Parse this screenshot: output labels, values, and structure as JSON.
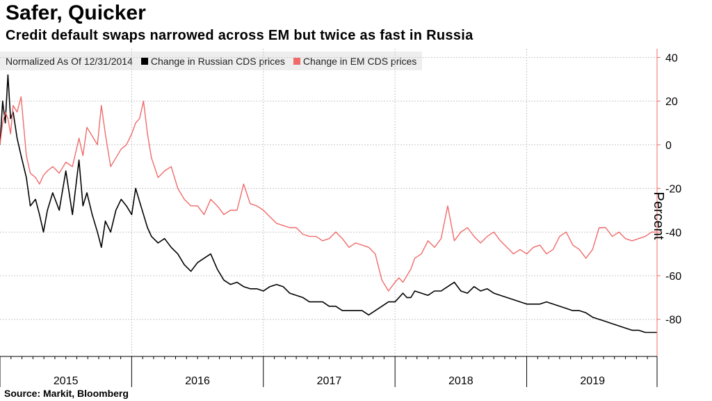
{
  "title": "Safer, Quicker",
  "subtitle": "Credit default swaps narrowed across EM but twice as fast in Russia",
  "source": "Source: Markit, Bloomberg",
  "legend": {
    "note": "Normalized As Of 12/31/2014"
  },
  "chart_data": {
    "type": "line",
    "ylabel": "Percent",
    "xlabel": "",
    "ylim": [
      -97,
      44
    ],
    "y_ticks": [
      40,
      20,
      0,
      -20,
      -40,
      -60,
      -80
    ],
    "x_range": [
      2015.0,
      2019.99
    ],
    "year_labels": [
      "2015",
      "2016",
      "2017",
      "2018",
      "2019"
    ],
    "grid": true,
    "legend_position": "top-left",
    "series": [
      {
        "name": "Change in Russian CDS prices",
        "color": "#000000",
        "x": [
          2015.0,
          2015.02,
          2015.04,
          2015.06,
          2015.08,
          2015.1,
          2015.13,
          2015.16,
          2015.2,
          2015.23,
          2015.27,
          2015.3,
          2015.33,
          2015.36,
          2015.4,
          2015.45,
          2015.5,
          2015.55,
          2015.6,
          2015.63,
          2015.66,
          2015.7,
          2015.74,
          2015.77,
          2015.8,
          2015.84,
          2015.88,
          2015.92,
          2015.96,
          2016.0,
          2016.03,
          2016.06,
          2016.09,
          2016.12,
          2016.15,
          2016.2,
          2016.25,
          2016.3,
          2016.35,
          2016.4,
          2016.45,
          2016.5,
          2016.55,
          2016.6,
          2016.65,
          2016.7,
          2016.75,
          2016.8,
          2016.85,
          2016.9,
          2016.95,
          2017.0,
          2017.05,
          2017.1,
          2017.15,
          2017.2,
          2017.25,
          2017.3,
          2017.35,
          2017.4,
          2017.45,
          2017.5,
          2017.55,
          2017.6,
          2017.65,
          2017.7,
          2017.75,
          2017.8,
          2017.85,
          2017.9,
          2017.95,
          2018.0,
          2018.03,
          2018.06,
          2018.09,
          2018.12,
          2018.15,
          2018.2,
          2018.25,
          2018.3,
          2018.35,
          2018.4,
          2018.45,
          2018.5,
          2018.55,
          2018.6,
          2018.65,
          2018.7,
          2018.75,
          2018.8,
          2018.85,
          2018.9,
          2018.95,
          2019.0,
          2019.05,
          2019.1,
          2019.15,
          2019.2,
          2019.25,
          2019.3,
          2019.35,
          2019.4,
          2019.45,
          2019.5,
          2019.55,
          2019.6,
          2019.65,
          2019.7,
          2019.75,
          2019.8,
          2019.85,
          2019.9,
          2019.95,
          2019.99
        ],
        "y": [
          0,
          20,
          10,
          32,
          12,
          15,
          3,
          -5,
          -15,
          -28,
          -25,
          -32,
          -40,
          -30,
          -22,
          -30,
          -12,
          -32,
          -7,
          -28,
          -22,
          -32,
          -40,
          -47,
          -35,
          -40,
          -30,
          -25,
          -28,
          -32,
          -20,
          -26,
          -32,
          -38,
          -42,
          -45,
          -43,
          -47,
          -50,
          -55,
          -58,
          -54,
          -52,
          -50,
          -57,
          -62,
          -64,
          -63,
          -65,
          -66,
          -66,
          -67,
          -65,
          -64,
          -65,
          -68,
          -69,
          -70,
          -72,
          -72,
          -72,
          -74,
          -74,
          -76,
          -76,
          -76,
          -76,
          -78,
          -76,
          -74,
          -72,
          -72,
          -70,
          -68,
          -70,
          -70,
          -67,
          -68,
          -69,
          -67,
          -67,
          -65,
          -63,
          -67,
          -68,
          -65,
          -67,
          -66,
          -68,
          -69,
          -70,
          -71,
          -72,
          -73,
          -73,
          -73,
          -72,
          -73,
          -74,
          -75,
          -76,
          -76,
          -77,
          -79,
          -80,
          -81,
          -82,
          -83,
          -84,
          -85,
          -85,
          -86,
          -86,
          -86
        ]
      },
      {
        "name": "Change in EM CDS prices",
        "color": "#f06a6a",
        "x": [
          2015.0,
          2015.02,
          2015.04,
          2015.06,
          2015.08,
          2015.1,
          2015.13,
          2015.16,
          2015.2,
          2015.23,
          2015.27,
          2015.3,
          2015.33,
          2015.36,
          2015.4,
          2015.45,
          2015.5,
          2015.55,
          2015.6,
          2015.63,
          2015.66,
          2015.7,
          2015.74,
          2015.77,
          2015.8,
          2015.84,
          2015.88,
          2015.92,
          2015.96,
          2016.0,
          2016.03,
          2016.06,
          2016.09,
          2016.12,
          2016.15,
          2016.2,
          2016.25,
          2016.3,
          2016.35,
          2016.4,
          2016.45,
          2016.5,
          2016.55,
          2016.6,
          2016.65,
          2016.7,
          2016.75,
          2016.8,
          2016.85,
          2016.9,
          2016.95,
          2017.0,
          2017.05,
          2017.1,
          2017.15,
          2017.2,
          2017.25,
          2017.3,
          2017.35,
          2017.4,
          2017.45,
          2017.5,
          2017.55,
          2017.6,
          2017.65,
          2017.7,
          2017.75,
          2017.8,
          2017.85,
          2017.9,
          2017.95,
          2018.0,
          2018.03,
          2018.06,
          2018.09,
          2018.12,
          2018.15,
          2018.2,
          2018.25,
          2018.3,
          2018.35,
          2018.4,
          2018.45,
          2018.5,
          2018.55,
          2018.6,
          2018.65,
          2018.7,
          2018.75,
          2018.8,
          2018.85,
          2018.9,
          2018.95,
          2019.0,
          2019.05,
          2019.1,
          2019.15,
          2019.2,
          2019.25,
          2019.3,
          2019.35,
          2019.4,
          2019.45,
          2019.5,
          2019.55,
          2019.6,
          2019.65,
          2019.7,
          2019.75,
          2019.8,
          2019.85,
          2019.9,
          2019.95,
          2019.99
        ],
        "y": [
          0,
          10,
          15,
          12,
          5,
          18,
          15,
          22,
          -5,
          -13,
          -15,
          -18,
          -14,
          -12,
          -10,
          -13,
          -8,
          -10,
          3,
          -5,
          8,
          4,
          0,
          18,
          5,
          -10,
          -6,
          -2,
          0,
          5,
          10,
          12,
          20,
          5,
          -6,
          -15,
          -12,
          -10,
          -20,
          -25,
          -28,
          -28,
          -32,
          -25,
          -28,
          -32,
          -30,
          -30,
          -18,
          -27,
          -28,
          -30,
          -33,
          -36,
          -37,
          -38,
          -38,
          -41,
          -42,
          -42,
          -44,
          -43,
          -40,
          -43,
          -47,
          -45,
          -46,
          -47,
          -50,
          -62,
          -67,
          -63,
          -61,
          -63,
          -60,
          -57,
          -52,
          -50,
          -44,
          -47,
          -43,
          -28,
          -44,
          -40,
          -38,
          -42,
          -45,
          -42,
          -40,
          -44,
          -47,
          -50,
          -48,
          -50,
          -47,
          -46,
          -50,
          -48,
          -42,
          -40,
          -46,
          -48,
          -52,
          -48,
          -38,
          -38,
          -42,
          -40,
          -43,
          -44,
          -43,
          -42,
          -40,
          -40
        ]
      }
    ]
  }
}
